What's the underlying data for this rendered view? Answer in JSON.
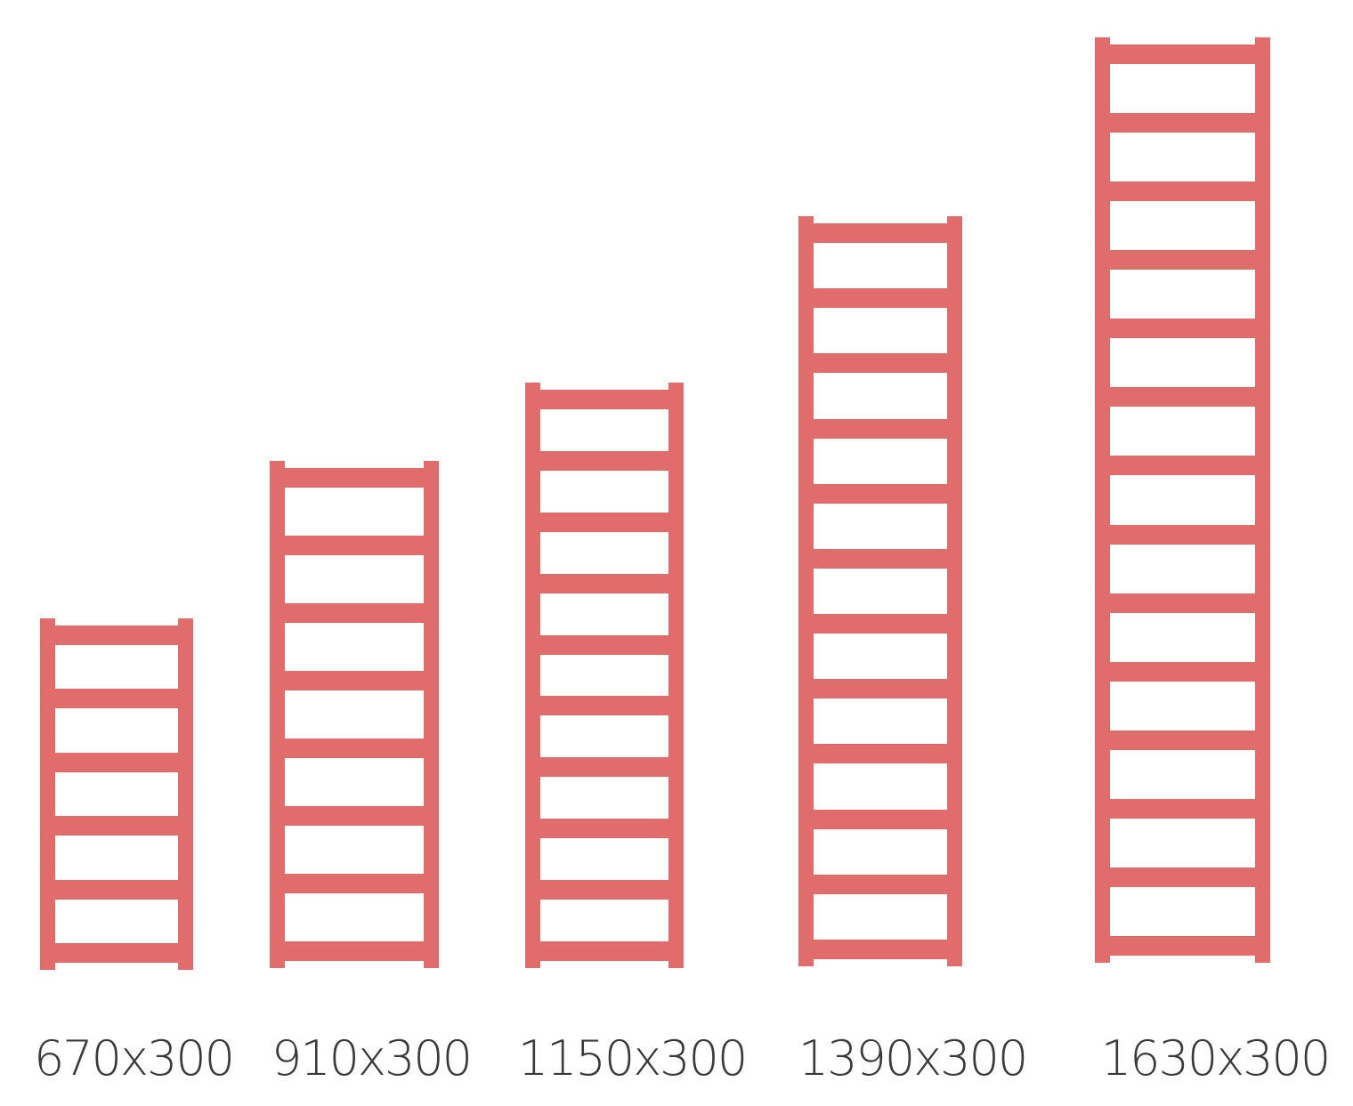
{
  "accent_color": "#e06c6c",
  "label_color": "#3a3a3a",
  "radiators": [
    {
      "label": "670x300",
      "bar_count": 6
    },
    {
      "label": "910x300",
      "bar_count": 8
    },
    {
      "label": "1150x300",
      "bar_count": 10
    },
    {
      "label": "1390x300",
      "bar_count": 12
    },
    {
      "label": "1630x300",
      "bar_count": 14
    }
  ]
}
